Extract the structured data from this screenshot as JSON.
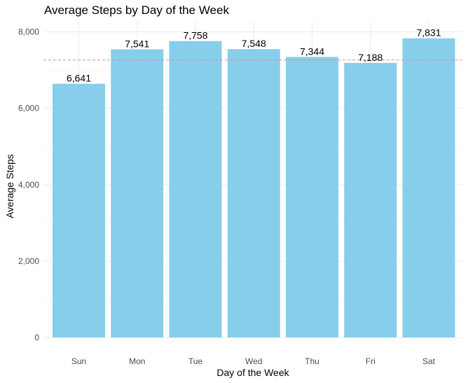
{
  "chart_data": {
    "type": "bar",
    "title": "Average Steps by Day of the Week",
    "xlabel": "Day of the Week",
    "ylabel": "Average Steps",
    "categories": [
      "Sun",
      "Mon",
      "Tue",
      "Wed",
      "Thu",
      "Fri",
      "Sat"
    ],
    "values": [
      6641,
      7541,
      7758,
      7548,
      7344,
      7188,
      7831
    ],
    "value_labels": [
      "6,641",
      "7,541",
      "7,758",
      "7,548",
      "7,344",
      "7,188",
      "7,831"
    ],
    "ylim": [
      0,
      8000
    ],
    "y_ticks": [
      0,
      2000,
      4000,
      6000,
      8000
    ],
    "y_tick_labels": [
      "0",
      "2,000",
      "4,000",
      "6,000",
      "8,000"
    ],
    "reference_line": {
      "value": 7264,
      "style": "dashed",
      "color": "#e88c8c"
    },
    "bar_color": "#87ceeb",
    "grid": true
  }
}
